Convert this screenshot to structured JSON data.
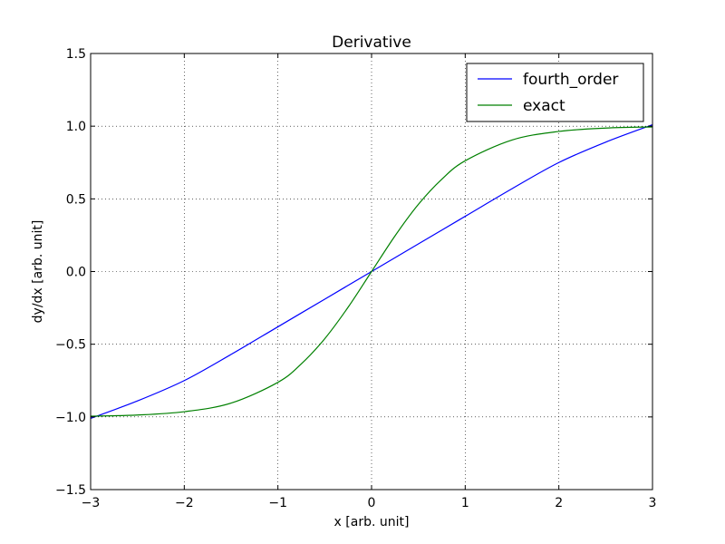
{
  "chart_data": {
    "type": "line",
    "title": "Derivative",
    "xlabel": "x [arb. unit]",
    "ylabel": "dy/dx [arb. unit]",
    "xlim": [
      -3,
      3
    ],
    "ylim": [
      -1.5,
      1.5
    ],
    "xticks": [
      -3,
      -2,
      -1,
      0,
      1,
      2,
      3
    ],
    "xtick_labels": [
      "−3",
      "−2",
      "−1",
      "0",
      "1",
      "2",
      "3"
    ],
    "yticks": [
      -1.5,
      -1.0,
      -0.5,
      0.0,
      0.5,
      1.0,
      1.5
    ],
    "ytick_labels": [
      "−1.5",
      "−1.0",
      "−0.5",
      "0.0",
      "0.5",
      "1.0",
      "1.5"
    ],
    "grid": true,
    "legend_position": "top-right",
    "series": [
      {
        "name": "fourth_order",
        "color": "#0000ff",
        "x": [
          -3.0,
          -2.5,
          -2.0,
          -1.5,
          -1.0,
          -0.5,
          0.0,
          0.5,
          1.0,
          1.5,
          2.0,
          2.5,
          3.0
        ],
        "y": [
          -1.01,
          -0.89,
          -0.75,
          -0.57,
          -0.38,
          -0.19,
          0.0,
          0.19,
          0.38,
          0.57,
          0.75,
          0.89,
          1.01
        ]
      },
      {
        "name": "exact",
        "color": "#008000",
        "x": [
          -3.0,
          -2.5,
          -2.0,
          -1.5,
          -1.0,
          -0.75,
          -0.5,
          -0.25,
          0.0,
          0.25,
          0.5,
          0.75,
          1.0,
          1.5,
          2.0,
          2.5,
          3.0
        ],
        "y": [
          -0.995,
          -0.987,
          -0.964,
          -0.905,
          -0.762,
          -0.635,
          -0.462,
          -0.245,
          0.0,
          0.245,
          0.462,
          0.635,
          0.762,
          0.905,
          0.964,
          0.987,
          0.995
        ]
      }
    ]
  }
}
